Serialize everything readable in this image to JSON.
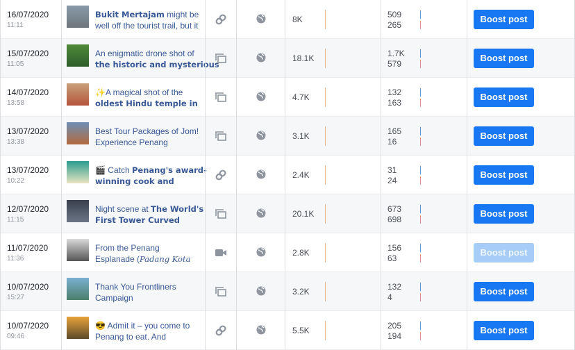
{
  "rows": [
    {
      "date": "16/07/2020",
      "time": "11:11",
      "text": [
        [
          {
            "t": "Bukit Mertajam",
            "b": true
          },
          {
            "t": " might be"
          }
        ],
        [
          {
            "t": "well off the tourist trail, but it"
          }
        ]
      ],
      "type": "link",
      "reach": "8K",
      "engagement": [
        "509",
        "265"
      ],
      "button": {
        "label": "Boost post",
        "enabled": true
      }
    },
    {
      "date": "15/07/2020",
      "time": "11:05",
      "text": [
        [
          {
            "t": "An enigmatic drone shot of"
          }
        ],
        [
          {
            "t": "the historic and mysterious",
            "b": true
          }
        ]
      ],
      "type": "album",
      "reach": "18.1K",
      "engagement": [
        "1.7K",
        "579"
      ],
      "button": {
        "label": "Boost post",
        "enabled": true
      }
    },
    {
      "date": "14/07/2020",
      "time": "13:58",
      "text": [
        [
          {
            "t": "✨A magical shot of the"
          }
        ],
        [
          {
            "t": "oldest Hindu temple in",
            "b": true
          }
        ]
      ],
      "type": "album",
      "reach": "4.7K",
      "engagement": [
        "132",
        "163"
      ],
      "button": {
        "label": "Boost post",
        "enabled": true
      }
    },
    {
      "date": "13/07/2020",
      "time": "13:38",
      "text": [
        [
          {
            "t": "Best Tour Packages of Jom!"
          }
        ],
        [
          {
            "t": "Experience Penang"
          }
        ]
      ],
      "type": "album",
      "reach": "3.1K",
      "engagement": [
        "165",
        "16"
      ],
      "button": {
        "label": "Boost post",
        "enabled": true
      }
    },
    {
      "date": "13/07/2020",
      "time": "10:22",
      "text": [
        [
          {
            "t": "🎬 Catch "
          },
          {
            "t": "Penang's award-",
            "b": true
          }
        ],
        [
          {
            "t": "winning cook and",
            "b": true
          }
        ]
      ],
      "type": "link",
      "reach": "2.4K",
      "engagement": [
        "31",
        "24"
      ],
      "button": {
        "label": "Boost post",
        "enabled": true
      }
    },
    {
      "date": "12/07/2020",
      "time": "11:15",
      "text": [
        [
          {
            "t": "Night scene at "
          },
          {
            "t": "The World's",
            "b": true
          }
        ],
        [
          {
            "t": "First Tower Curved",
            "b": true
          }
        ]
      ],
      "type": "album",
      "reach": "20.1K",
      "engagement": [
        "673",
        "698"
      ],
      "button": {
        "label": "Boost post",
        "enabled": true
      }
    },
    {
      "date": "11/07/2020",
      "time": "11:36",
      "text": [
        [
          {
            "t": "From the Penang"
          }
        ],
        [
          {
            "t": "Esplanade ("
          },
          {
            "t": "Padang Kota",
            "i": true
          }
        ]
      ],
      "type": "video",
      "reach": "2.8K",
      "engagement": [
        "156",
        "63"
      ],
      "button": {
        "label": "Boost post",
        "enabled": false
      }
    },
    {
      "date": "10/07/2020",
      "time": "15:27",
      "text": [
        [
          {
            "t": "Thank You Frontliners"
          }
        ],
        [
          {
            "t": "Campaign"
          }
        ]
      ],
      "type": "album",
      "reach": "3.2K",
      "engagement": [
        "132",
        "4"
      ],
      "button": {
        "label": "Boost post",
        "enabled": true
      }
    },
    {
      "date": "10/07/2020",
      "time": "09:46",
      "text": [
        [
          {
            "t": "😎 Admit it – you come to"
          }
        ],
        [
          {
            "t": "Penang to eat. And"
          }
        ]
      ],
      "type": "link",
      "reach": "5.5K",
      "engagement": [
        "205",
        "194"
      ],
      "button": {
        "label": "Boost post",
        "enabled": true
      }
    }
  ]
}
